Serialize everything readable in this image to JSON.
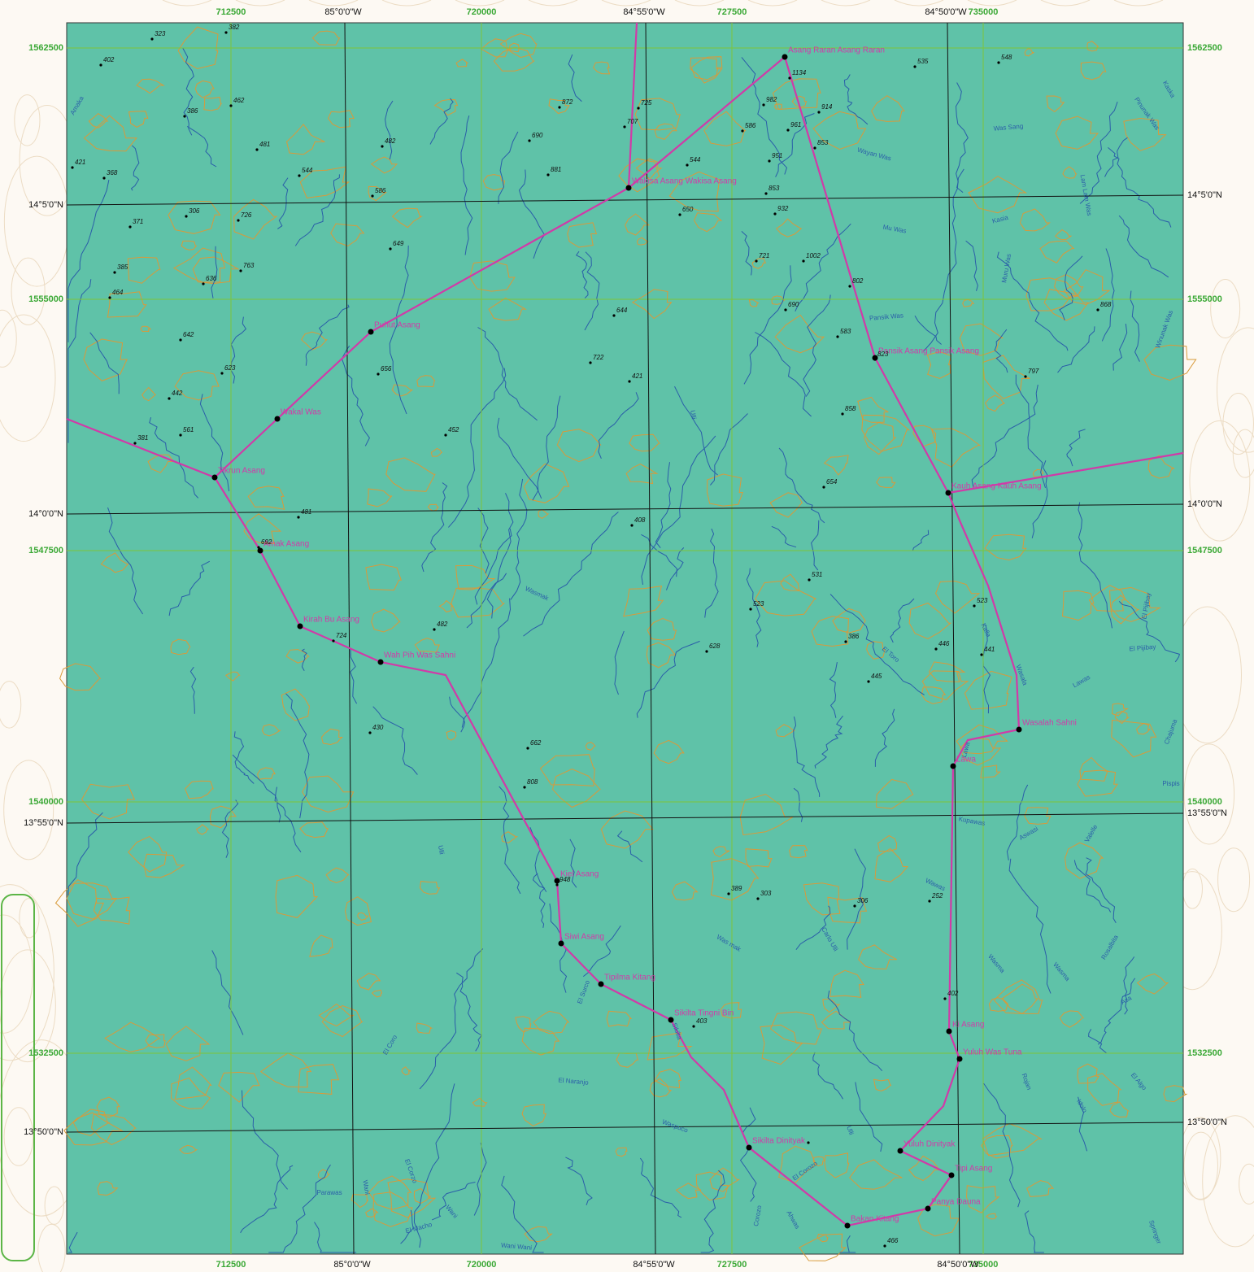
{
  "grid": {
    "eastings": [
      "712500",
      "720000",
      "727500",
      "735000"
    ],
    "northings": [
      "1562500",
      "1555000",
      "1547500",
      "1540000",
      "1532500"
    ],
    "longitudes": [
      "85°0'0\"W",
      "84°55'0\"W",
      "84°50'0\"W"
    ],
    "latitudes": [
      "14°5'0\"N",
      "14°0'0\"N",
      "13°55'0\"N",
      "13°50'0\"N"
    ]
  },
  "places": [
    "Asang Raran Asang Raran",
    "Wakisa Asang Wakisa Asang",
    "Puhut Asang",
    "Wakal Was",
    "Tikrun Asang",
    "Amak Asang",
    "Kirah Bu Asang",
    "Wah Pih Was Sahni",
    "Kiel Asang",
    "Siwi Asang",
    "Tipilma Kitang",
    "Sikilta Tingni Bin",
    "Sikilta Dinityak",
    "Bakan Kitang",
    "Panya Dauna",
    "Tipi Asang",
    "Yuluh Dinityak",
    "Yuluh Was Tuna",
    "Ki Asang",
    "Lawa",
    "Wasalah Sahni",
    "Kauh Asang Kauh Asang",
    "Pansik Asang Pansik Asang"
  ],
  "elevations": [
    "323",
    "382",
    "402",
    "386",
    "462",
    "481",
    "421",
    "368",
    "544",
    "306",
    "726",
    "371",
    "385",
    "763",
    "636",
    "464",
    "642",
    "623",
    "442",
    "561",
    "381",
    "482",
    "586",
    "649",
    "656",
    "452",
    "872",
    "690",
    "881",
    "707",
    "725",
    "544",
    "650",
    "644",
    "722",
    "421",
    "408",
    "586",
    "982",
    "1134",
    "914",
    "961",
    "853",
    "951",
    "853",
    "932",
    "721",
    "1002",
    "802",
    "690",
    "583",
    "823",
    "858",
    "654",
    "535",
    "548",
    "868",
    "797",
    "481",
    "692",
    "724",
    "482",
    "531",
    "523",
    "523",
    "628",
    "386",
    "446",
    "441",
    "445",
    "430",
    "662",
    "808",
    "948",
    "389",
    "303",
    "306",
    "252",
    "402",
    "403",
    "466"
  ],
  "rivers": [
    "Amaka",
    "Was Sang",
    "Wayan Was",
    "Mu Was",
    "Kasia",
    "Muru Was",
    "Lam Lam Was",
    "Pinunak Was",
    "Kaska",
    "Pansik Was",
    "Winunak Was",
    "Ulli",
    "Wasmak",
    "Kalla",
    "El Toro",
    "El Pijibay",
    "El Pijibay",
    "Lawas",
    "Wasala",
    "Chajuma",
    "Lawa",
    "Pispis",
    "Kupawas",
    "Aswasi",
    "Valelle",
    "Wawas",
    "Ulli",
    "Was mak",
    "Carlo Ulli",
    "Wasma",
    "Wasma",
    "Rosalbita",
    "Asa",
    "El Surco",
    "Sikilta",
    "El Coro",
    "El Naranjo",
    "Rojan",
    "El Algo",
    "Idolo",
    "Ulli",
    "Waspuco",
    "El Corzo",
    "El Corozo",
    "Wani",
    "Parawas",
    "Ahwas",
    "Corozo",
    "El Macho",
    "Wani",
    "Wani Wani",
    "Springer"
  ]
}
